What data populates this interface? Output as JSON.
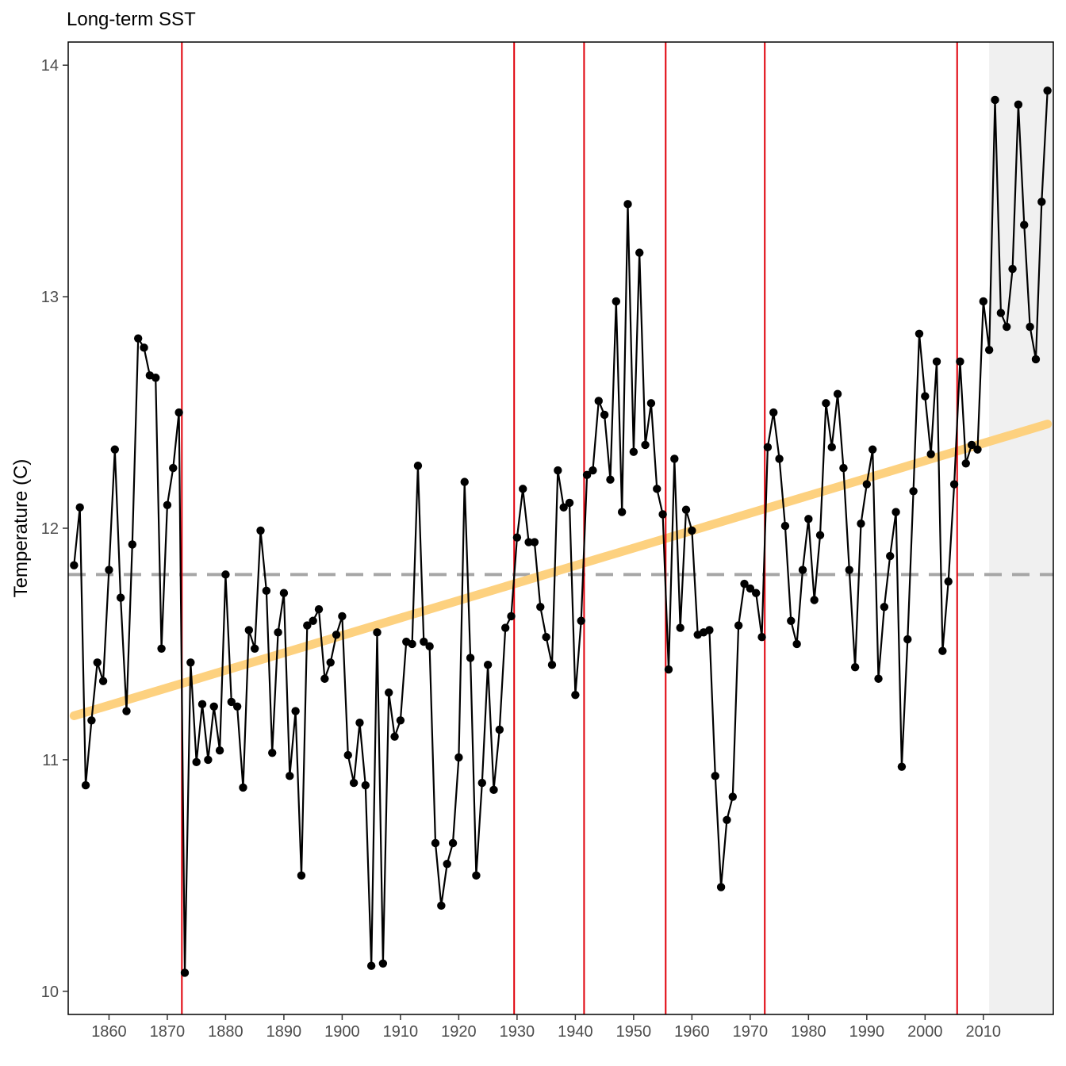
{
  "chart_data": {
    "type": "line",
    "title": "Long-term SST",
    "xlabel": "",
    "ylabel": "Temperature (C)",
    "xlim": [
      1853,
      2022
    ],
    "ylim": [
      9.9,
      14.1
    ],
    "x_ticks": [
      1860,
      1870,
      1880,
      1890,
      1900,
      1910,
      1920,
      1930,
      1940,
      1950,
      1960,
      1970,
      1980,
      1990,
      2000,
      2010
    ],
    "y_ticks": [
      10,
      11,
      12,
      13,
      14
    ],
    "grid": false,
    "legend": "none",
    "colors": {
      "line": "#000000",
      "points": "#000000",
      "trend": "#fdd17f",
      "mean_line": "#a6a6a6",
      "breakpoints": "#e0000a",
      "shade": "#f0f0f0",
      "axis": "#000000",
      "tick_text": "#4d4d4d"
    },
    "series": [
      {
        "x": [
          1854,
          1855,
          1856,
          1857,
          1858,
          1859,
          1860,
          1861,
          1862,
          1863,
          1864,
          1865,
          1866,
          1867,
          1868,
          1869,
          1870,
          1871,
          1872,
          1873,
          1874,
          1875,
          1876,
          1877,
          1878,
          1879,
          1880,
          1881,
          1882,
          1883,
          1884,
          1885,
          1886,
          1887,
          1888,
          1889,
          1890,
          1891,
          1892,
          1893,
          1894,
          1895,
          1896,
          1897,
          1898,
          1899,
          1900,
          1901,
          1902,
          1903,
          1904,
          1905,
          1906,
          1907,
          1908,
          1909,
          1910,
          1911,
          1912,
          1913,
          1914,
          1915,
          1916,
          1917,
          1918,
          1919,
          1920,
          1921,
          1922,
          1923,
          1924,
          1925,
          1926,
          1927,
          1928,
          1929,
          1930,
          1931,
          1932,
          1933,
          1934,
          1935,
          1936,
          1937,
          1938,
          1939,
          1940,
          1941,
          1942,
          1943,
          1944,
          1945,
          1946,
          1947,
          1948,
          1949,
          1950,
          1951,
          1952,
          1953,
          1954,
          1955,
          1956,
          1957,
          1958,
          1959,
          1960,
          1961,
          1962,
          1963,
          1964,
          1965,
          1966,
          1967,
          1968,
          1969,
          1970,
          1971,
          1972,
          1973,
          1974,
          1975,
          1976,
          1977,
          1978,
          1979,
          1980,
          1981,
          1982,
          1983,
          1984,
          1985,
          1986,
          1987,
          1988,
          1989,
          1990,
          1991,
          1992,
          1993,
          1994,
          1995,
          1996,
          1997,
          1998,
          1999,
          2000,
          2001,
          2002,
          2003,
          2004,
          2005,
          2006,
          2007,
          2008,
          2009,
          2010,
          2011,
          2012,
          2013,
          2014,
          2015,
          2016,
          2017,
          2018,
          2019,
          2020,
          2021
        ],
        "y": [
          11.84,
          12.09,
          10.89,
          11.17,
          11.42,
          11.34,
          11.82,
          12.34,
          11.7,
          11.21,
          11.93,
          12.82,
          12.78,
          12.66,
          12.65,
          11.48,
          12.1,
          12.26,
          12.5,
          10.08,
          11.42,
          10.99,
          11.24,
          11.0,
          11.23,
          11.04,
          11.8,
          11.25,
          11.23,
          10.88,
          11.56,
          11.48,
          11.99,
          11.73,
          11.03,
          11.55,
          11.72,
          10.93,
          11.21,
          10.5,
          11.58,
          11.6,
          11.65,
          11.35,
          11.42,
          11.54,
          11.62,
          11.02,
          10.9,
          11.16,
          10.89,
          10.11,
          11.55,
          10.12,
          11.29,
          11.1,
          11.17,
          11.51,
          11.5,
          12.27,
          11.51,
          11.49,
          10.64,
          10.37,
          10.55,
          10.64,
          11.01,
          12.2,
          11.44,
          10.5,
          10.9,
          11.41,
          10.87,
          11.13,
          11.57,
          11.62,
          11.96,
          12.17,
          11.94,
          11.94,
          11.66,
          11.53,
          11.41,
          12.25,
          12.09,
          12.11,
          11.28,
          11.6,
          12.23,
          12.25,
          12.55,
          12.49,
          12.21,
          12.98,
          12.07,
          13.4,
          12.33,
          13.19,
          12.36,
          12.54,
          12.17,
          12.06,
          11.39,
          12.3,
          11.57,
          12.08,
          11.99,
          11.54,
          11.55,
          11.56,
          10.93,
          10.45,
          10.74,
          10.84,
          11.58,
          11.76,
          11.74,
          11.72,
          11.53,
          12.35,
          12.5,
          12.3,
          12.01,
          11.6,
          11.5,
          11.82,
          12.04,
          11.69,
          11.97,
          12.54,
          12.35,
          12.58,
          12.26,
          11.82,
          11.4,
          12.02,
          12.19,
          12.34,
          11.35,
          11.66,
          11.88,
          12.07,
          10.97,
          11.52,
          12.16,
          12.84,
          12.57,
          12.32,
          12.72,
          11.47,
          11.77,
          12.19,
          12.72,
          12.28,
          12.36,
          12.34,
          12.98,
          12.77,
          13.85,
          12.93,
          12.87,
          13.12,
          13.83,
          13.31,
          12.87,
          12.73,
          13.41,
          13.89
        ]
      }
    ],
    "trend": {
      "x": [
        1854,
        2021
      ],
      "y": [
        11.19,
        12.45
      ]
    },
    "mean_line": 11.8,
    "breakpoints": [
      1872.5,
      1929.5,
      1941.5,
      1955.5,
      1972.5,
      2005.5
    ],
    "shaded_region": [
      2011,
      2022
    ]
  }
}
